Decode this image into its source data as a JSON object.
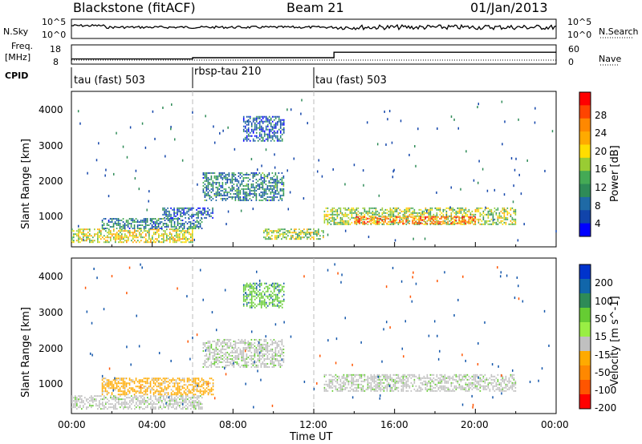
{
  "header": {
    "radar": "Blackstone (fitACF)",
    "beam": "Beam 21",
    "date": "01/Jan/2013"
  },
  "nsky_panel": {
    "label": "N.Sky",
    "right_label": "N.Search",
    "left_ticks": [
      "10^5",
      "10^0"
    ],
    "right_ticks": [
      "10^5",
      "10^0"
    ]
  },
  "freq_panel": {
    "label_line1": "Freq.",
    "label_line2": "[MHz]",
    "right_label": "Nave",
    "left_ticks": [
      "18",
      "8"
    ],
    "right_ticks": [
      "60",
      "0"
    ]
  },
  "cpid_panel": {
    "label": "CPID",
    "segments": [
      {
        "label": "tau (fast) 503",
        "start_h": 0,
        "end_h": 6
      },
      {
        "label": "rbsp-tau 210",
        "start_h": 6,
        "end_h": 12
      },
      {
        "label": "tau (fast) 503",
        "start_h": 12,
        "end_h": 24
      }
    ]
  },
  "axes": {
    "xlabel": "Time UT",
    "x_ticks": [
      "00:00",
      "04:00",
      "08:00",
      "12:00",
      "16:00",
      "20:00",
      "00:00"
    ],
    "ylabel": "Slant Range [km]",
    "y_ticks": [
      "1000",
      "2000",
      "3000",
      "4000"
    ]
  },
  "power_colorbar": {
    "label": "Power [dB]",
    "ticks": [
      "28",
      "24",
      "20",
      "16",
      "12",
      "8",
      "4"
    ],
    "colors": [
      "#ff0000",
      "#ff4400",
      "#ff8800",
      "#ffaa00",
      "#ffdd00",
      "#99cc33",
      "#44aa55",
      "#2e8b57",
      "#1f6aa5",
      "#1144aa",
      "#0000ff"
    ]
  },
  "velocity_colorbar": {
    "label": "Velocity [m s^-1]",
    "ticks": [
      "200",
      "100",
      "50",
      "15",
      "-15",
      "-50",
      "-100",
      "-200"
    ],
    "colors": [
      "#0033cc",
      "#1166aa",
      "#2e8b57",
      "#66cc33",
      "#99ee44",
      "#c0c0c0",
      "#ffaa00",
      "#ff8800",
      "#ff5500",
      "#ff0000"
    ]
  },
  "chart_data": {
    "type": "heatmap",
    "x_range_hours": [
      0,
      24
    ],
    "y_range_km": [
      180,
      4600
    ],
    "nsky_level": "approximately 10^4 throughout",
    "freq_steps": [
      {
        "start_h": 0,
        "end_h": 6,
        "freq_mhz": 10
      },
      {
        "start_h": 6,
        "end_h": 13,
        "freq_mhz": 11
      },
      {
        "start_h": 13,
        "end_h": 24,
        "freq_mhz": 15
      }
    ],
    "power_regions": [
      {
        "t0": 0.0,
        "t1": 6.0,
        "r0": 300,
        "r1": 700,
        "dB": 18
      },
      {
        "t0": 1.5,
        "t1": 6.5,
        "r0": 700,
        "r1": 1000,
        "dB": 10
      },
      {
        "t0": 4.5,
        "t1": 7.0,
        "r0": 1000,
        "r1": 1300,
        "dB": 8
      },
      {
        "t0": 6.5,
        "t1": 10.5,
        "r0": 1500,
        "r1": 2300,
        "dB": 10
      },
      {
        "t0": 8.5,
        "t1": 10.5,
        "r0": 3200,
        "r1": 3900,
        "dB": 8
      },
      {
        "t0": 9.5,
        "t1": 12.5,
        "r0": 400,
        "r1": 700,
        "dB": 16
      },
      {
        "t0": 12.5,
        "t1": 22.0,
        "r0": 800,
        "r1": 1300,
        "dB": 16
      },
      {
        "t0": 14.0,
        "t1": 20.0,
        "r0": 850,
        "r1": 1050,
        "dB": 24
      }
    ],
    "velocity_regions": [
      {
        "t0": 0.0,
        "t1": 6.5,
        "r0": 300,
        "r1": 700,
        "v": 0
      },
      {
        "t0": 1.5,
        "t1": 7.0,
        "r0": 700,
        "r1": 1200,
        "v": -50
      },
      {
        "t0": 6.5,
        "t1": 10.5,
        "r0": 1500,
        "r1": 2300,
        "v": 0
      },
      {
        "t0": 8.5,
        "t1": 10.5,
        "r0": 3200,
        "r1": 3900,
        "v": 50
      },
      {
        "t0": 12.5,
        "t1": 22.0,
        "r0": 800,
        "r1": 1300,
        "v": 0
      }
    ]
  }
}
